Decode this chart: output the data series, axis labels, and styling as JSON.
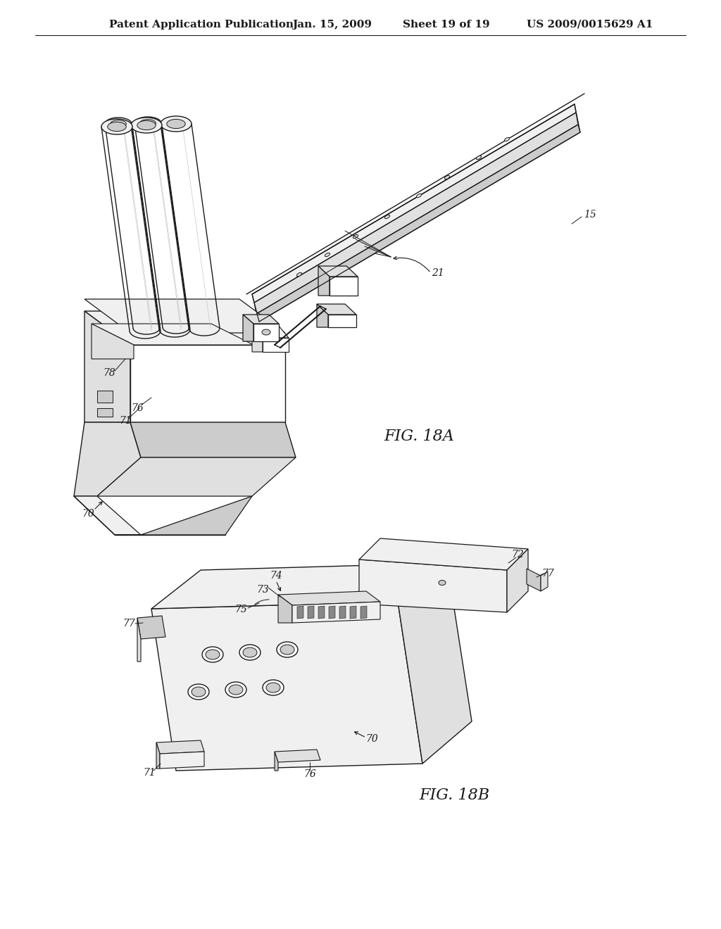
{
  "background_color": "#ffffff",
  "header_text": "Patent Application Publication",
  "header_date": "Jan. 15, 2009",
  "header_sheet": "Sheet 19 of 19",
  "header_patent": "US 2009/0015629 A1",
  "fig_label_A": "FIG. 18A",
  "fig_label_B": "FIG. 18B",
  "fig_label_fontsize": 16,
  "header_fontsize": 11,
  "line_color": "#1a1a1a",
  "face_light": "#f0f0f0",
  "face_mid": "#e0e0e0",
  "face_dark": "#cccccc",
  "face_white": "#ffffff",
  "text_color": "#1a1a1a"
}
